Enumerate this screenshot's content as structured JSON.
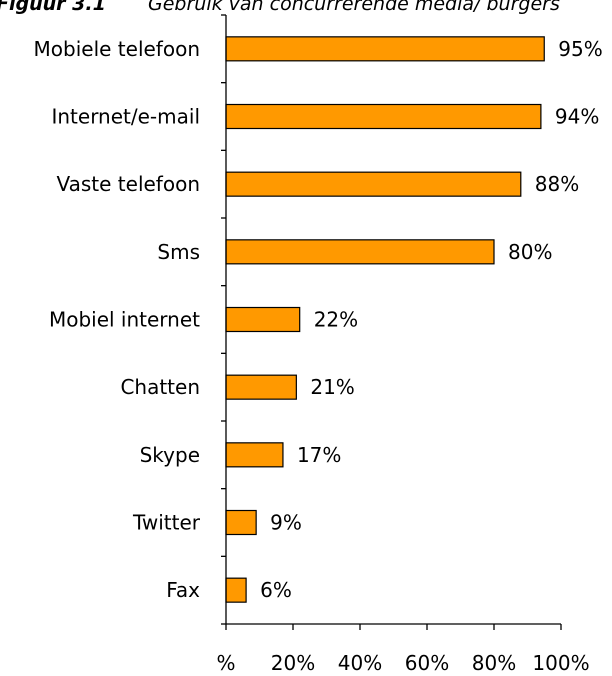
{
  "figure_number": "Figuur 3.1",
  "chart_data": {
    "type": "bar",
    "orientation": "horizontal",
    "title": "Gebruik van concurrerende media/ burgers",
    "categories": [
      "Mobiele telefoon",
      "Internet/e-mail",
      "Vaste telefoon",
      "Sms",
      "Mobiel internet",
      "Chatten",
      "Skype",
      "Twitter",
      "Fax"
    ],
    "values": [
      95,
      94,
      88,
      80,
      22,
      21,
      17,
      9,
      6
    ],
    "value_labels": [
      "95%",
      "94%",
      "88%",
      "80%",
      "22%",
      "21%",
      "17%",
      "9%",
      "6%"
    ],
    "xlim": [
      0,
      100
    ],
    "x_ticks": [
      0,
      20,
      40,
      60,
      80,
      100
    ],
    "x_tick_labels": [
      "%",
      "20%",
      "40%",
      "60%",
      "80%",
      "100%"
    ],
    "bar_color": "#FF9900",
    "bar_edge_color": "#000000",
    "grid": false
  }
}
